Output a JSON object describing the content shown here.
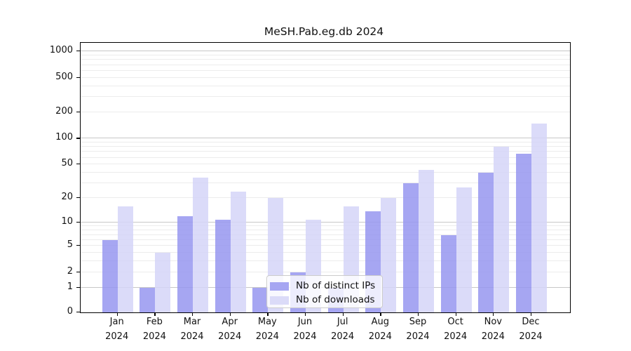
{
  "title": "MeSH.Pab.eg.db 2024",
  "background": "#ffffff",
  "chart_data": {
    "type": "bar",
    "title": "MeSH.Pab.eg.db 2024",
    "categories": [
      "Jan",
      "Feb",
      "Mar",
      "Apr",
      "May",
      "Jun",
      "Jul",
      "Aug",
      "Sep",
      "Oct",
      "Nov",
      "Dec"
    ],
    "year": "2024",
    "series": [
      {
        "name": "Nb of distinct IPs",
        "color": "#a6a6f2",
        "values": [
          6,
          1,
          12,
          11,
          1,
          2,
          1,
          14,
          30,
          7,
          40,
          67
        ]
      },
      {
        "name": "Nb of downloads",
        "color": "#dbdbf8",
        "values": [
          16,
          4,
          35,
          24,
          20,
          11,
          16,
          20,
          43,
          27,
          81,
          150
        ]
      }
    ],
    "xlabel": "",
    "ylabel": "",
    "yscale": "log1p",
    "ylim": [
      0,
      1100
    ],
    "ytick_values": [
      0,
      1,
      2,
      5,
      10,
      20,
      50,
      100,
      200,
      500,
      1000
    ],
    "ytick_labels": [
      "0",
      "1",
      "2",
      "5",
      "10",
      "20",
      "50",
      "100",
      "200",
      "500",
      "1000"
    ],
    "grid_major_values": [
      1,
      10,
      100,
      1000
    ],
    "grid_minor_values": [
      2,
      3,
      4,
      5,
      6,
      7,
      8,
      9,
      20,
      30,
      40,
      50,
      60,
      70,
      80,
      90,
      200,
      300,
      400,
      500,
      600,
      700,
      800,
      900
    ],
    "grid": "both",
    "legend_position": "lower center-right inside plot",
    "grid_minor_color": "#ececec",
    "grid_major_color": "#c6c6c6",
    "axis_color": "#000000"
  }
}
